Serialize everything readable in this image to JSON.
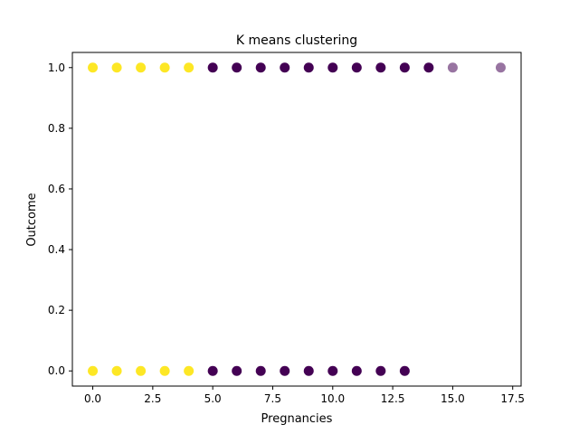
{
  "chart_data": {
    "type": "scatter",
    "title": "K means clustering",
    "xlabel": "Pregnancies",
    "ylabel": "Outcome",
    "xlim": [
      -0.85,
      17.85
    ],
    "ylim": [
      -0.05,
      1.05
    ],
    "xticks": [
      {
        "value": 0,
        "label": "0.0"
      },
      {
        "value": 2.5,
        "label": "2.5"
      },
      {
        "value": 5,
        "label": "5.0"
      },
      {
        "value": 7.5,
        "label": "7.5"
      },
      {
        "value": 10,
        "label": "10.0"
      },
      {
        "value": 12.5,
        "label": "12.5"
      },
      {
        "value": 15,
        "label": "15.0"
      },
      {
        "value": 17.5,
        "label": "17.5"
      }
    ],
    "yticks": [
      {
        "value": 0,
        "label": "0.0"
      },
      {
        "value": 0.2,
        "label": "0.2"
      },
      {
        "value": 0.4,
        "label": "0.4"
      },
      {
        "value": 0.6,
        "label": "0.6"
      },
      {
        "value": 0.8,
        "label": "0.8"
      },
      {
        "value": 1,
        "label": "1.0"
      }
    ],
    "grid": false,
    "legend": "none",
    "colors": {
      "cluster_0": "#440154",
      "cluster_1": "#fde725"
    },
    "series": [
      {
        "cluster": 1,
        "color": "#fde725",
        "points": [
          {
            "x": 0,
            "y": 1
          },
          {
            "x": 1,
            "y": 1
          },
          {
            "x": 2,
            "y": 1
          },
          {
            "x": 3,
            "y": 1
          },
          {
            "x": 4,
            "y": 1
          },
          {
            "x": 0,
            "y": 0
          },
          {
            "x": 1,
            "y": 0
          },
          {
            "x": 2,
            "y": 0
          },
          {
            "x": 3,
            "y": 0
          },
          {
            "x": 4,
            "y": 0
          }
        ]
      },
      {
        "cluster": 0,
        "color": "#440154",
        "points": [
          {
            "x": 5,
            "y": 1
          },
          {
            "x": 6,
            "y": 1
          },
          {
            "x": 7,
            "y": 1
          },
          {
            "x": 8,
            "y": 1
          },
          {
            "x": 9,
            "y": 1
          },
          {
            "x": 10,
            "y": 1
          },
          {
            "x": 11,
            "y": 1
          },
          {
            "x": 12,
            "y": 1
          },
          {
            "x": 13,
            "y": 1
          },
          {
            "x": 14,
            "y": 1
          },
          {
            "x": 15,
            "y": 1,
            "faint": true
          },
          {
            "x": 17,
            "y": 1,
            "faint": true
          },
          {
            "x": 5,
            "y": 0
          },
          {
            "x": 6,
            "y": 0
          },
          {
            "x": 7,
            "y": 0
          },
          {
            "x": 8,
            "y": 0
          },
          {
            "x": 9,
            "y": 0
          },
          {
            "x": 10,
            "y": 0
          },
          {
            "x": 11,
            "y": 0
          },
          {
            "x": 12,
            "y": 0
          },
          {
            "x": 13,
            "y": 0
          }
        ]
      }
    ]
  }
}
